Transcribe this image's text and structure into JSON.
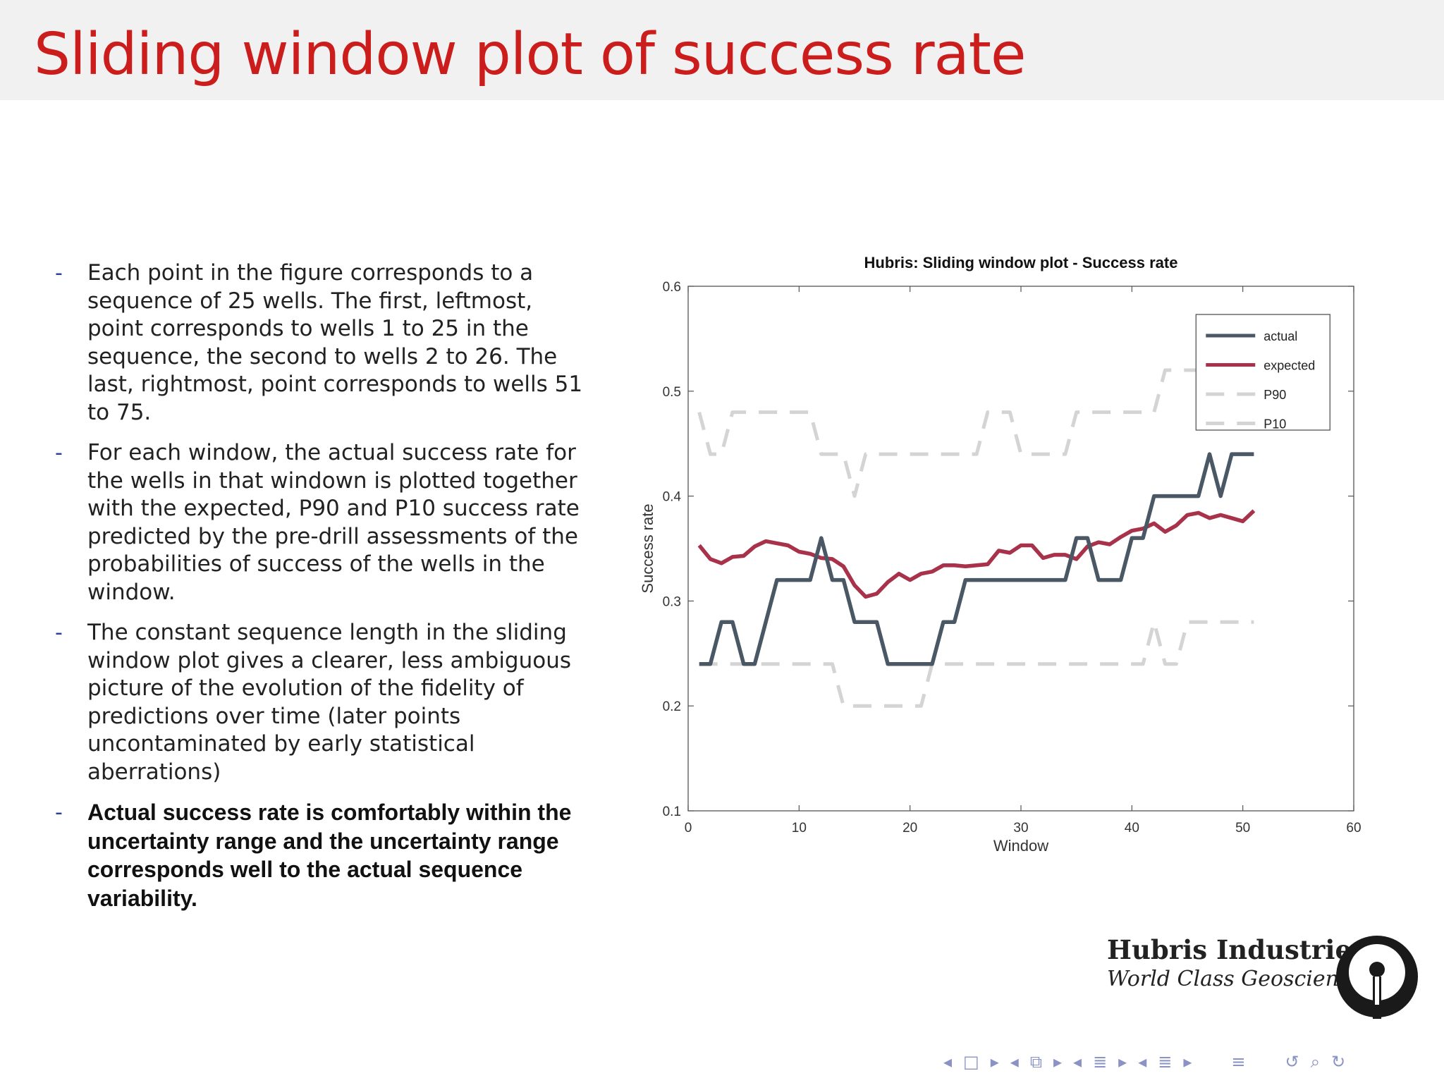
{
  "slide": {
    "title": "Sliding window plot of success rate"
  },
  "bullets": [
    {
      "marker": "-",
      "text": "Each point in the figure corresponds to a sequence of 25 wells. The first, leftmost, point corresponds to wells 1 to 25 in the sequence, the second to wells 2 to 26. The last, rightmost, point corresponds to wells 51 to 75."
    },
    {
      "marker": "-",
      "text": "For each window, the actual success rate for the wells in that windown is plotted together with the expected, P90 and P10 success rate predicted by the pre-drill assessments of the probabilities of success of the wells in the window."
    },
    {
      "marker": "-",
      "text": "The constant sequence length in the sliding window plot gives a clearer, less ambiguous picture of the evolution of the fidelity of predictions over time (later points uncontaminated by early statistical aberrations)"
    },
    {
      "marker": "-",
      "text": "Actual success rate is comfortably within the uncertainty range and the uncertainty range corresponds well to the actual sequence variability."
    }
  ],
  "brand": {
    "name": "Hubris Industries",
    "tagline": "World Class Geoscience"
  },
  "nav_icons": [
    "prev-icon",
    "frame-icon",
    "next-icon",
    "prev-section-icon",
    "sections-icon",
    "next-section-icon",
    "prev-subsection-icon",
    "subsection-icon",
    "next-subsection-icon",
    "prev-slide-icon",
    "slide-icon",
    "next-slide-icon",
    "menu-icon",
    "back-icon",
    "search-icon",
    "refresh-icon"
  ],
  "chart_data": {
    "type": "line",
    "title": "Hubris: Sliding window plot - Success rate",
    "xlabel": "Window",
    "ylabel": "Success rate",
    "xlim": [
      0,
      60
    ],
    "ylim": [
      0.1,
      0.6
    ],
    "xticks": [
      0,
      10,
      20,
      30,
      40,
      50,
      60
    ],
    "yticks": [
      0.1,
      0.2,
      0.3,
      0.4,
      0.5,
      0.6
    ],
    "legend_position": "top-right",
    "grid": false,
    "x": [
      1,
      2,
      3,
      4,
      5,
      6,
      7,
      8,
      9,
      10,
      11,
      12,
      13,
      14,
      15,
      16,
      17,
      18,
      19,
      20,
      21,
      22,
      23,
      24,
      25,
      26,
      27,
      28,
      29,
      30,
      31,
      32,
      33,
      34,
      35,
      36,
      37,
      38,
      39,
      40,
      41,
      42,
      43,
      44,
      45,
      46,
      47,
      48,
      49,
      50,
      51
    ],
    "series": [
      {
        "name": "actual",
        "color": "#4a5866",
        "style": "solid",
        "values": [
          0.24,
          0.24,
          0.28,
          0.28,
          0.24,
          0.24,
          0.28,
          0.32,
          0.32,
          0.32,
          0.32,
          0.36,
          0.32,
          0.32,
          0.28,
          0.28,
          0.28,
          0.24,
          0.24,
          0.24,
          0.24,
          0.24,
          0.28,
          0.28,
          0.32,
          0.32,
          0.32,
          0.32,
          0.32,
          0.32,
          0.32,
          0.32,
          0.32,
          0.32,
          0.36,
          0.36,
          0.32,
          0.32,
          0.32,
          0.36,
          0.36,
          0.4,
          0.4,
          0.4,
          0.4,
          0.4,
          0.44,
          0.4,
          0.44,
          0.44,
          0.44
        ]
      },
      {
        "name": "expected",
        "color": "#a8324a",
        "style": "solid",
        "values": [
          0.353,
          0.34,
          0.336,
          0.342,
          0.343,
          0.352,
          0.357,
          0.355,
          0.353,
          0.347,
          0.345,
          0.341,
          0.34,
          0.333,
          0.315,
          0.304,
          0.307,
          0.318,
          0.326,
          0.32,
          0.326,
          0.328,
          0.334,
          0.334,
          0.333,
          0.334,
          0.335,
          0.348,
          0.346,
          0.353,
          0.353,
          0.341,
          0.344,
          0.344,
          0.34,
          0.352,
          0.356,
          0.354,
          0.361,
          0.367,
          0.369,
          0.374,
          0.366,
          0.372,
          0.382,
          0.384,
          0.379,
          0.382,
          0.379,
          0.376,
          0.386
        ]
      },
      {
        "name": "P90",
        "color": "#d4d4d4",
        "style": "dashed",
        "values": [
          0.48,
          0.44,
          0.44,
          0.48,
          0.48,
          0.48,
          0.48,
          0.48,
          0.48,
          0.48,
          0.48,
          0.44,
          0.44,
          0.44,
          0.4,
          0.44,
          0.44,
          0.44,
          0.44,
          0.44,
          0.44,
          0.44,
          0.44,
          0.44,
          0.44,
          0.44,
          0.48,
          0.48,
          0.48,
          0.44,
          0.44,
          0.44,
          0.44,
          0.44,
          0.48,
          0.48,
          0.48,
          0.48,
          0.48,
          0.48,
          0.48,
          0.48,
          0.52,
          0.52,
          0.52,
          0.52,
          0.52,
          0.52,
          0.52,
          0.52,
          0.52
        ]
      },
      {
        "name": "P10",
        "color": "#d4d4d4",
        "style": "dashed",
        "values": [
          0.24,
          0.24,
          0.24,
          0.24,
          0.24,
          0.24,
          0.24,
          0.24,
          0.24,
          0.24,
          0.24,
          0.24,
          0.24,
          0.2,
          0.2,
          0.2,
          0.2,
          0.2,
          0.2,
          0.2,
          0.2,
          0.24,
          0.24,
          0.24,
          0.24,
          0.24,
          0.24,
          0.24,
          0.24,
          0.24,
          0.24,
          0.24,
          0.24,
          0.24,
          0.24,
          0.24,
          0.24,
          0.24,
          0.24,
          0.24,
          0.24,
          0.28,
          0.24,
          0.24,
          0.28,
          0.28,
          0.28,
          0.28,
          0.28,
          0.28,
          0.28
        ]
      }
    ]
  }
}
